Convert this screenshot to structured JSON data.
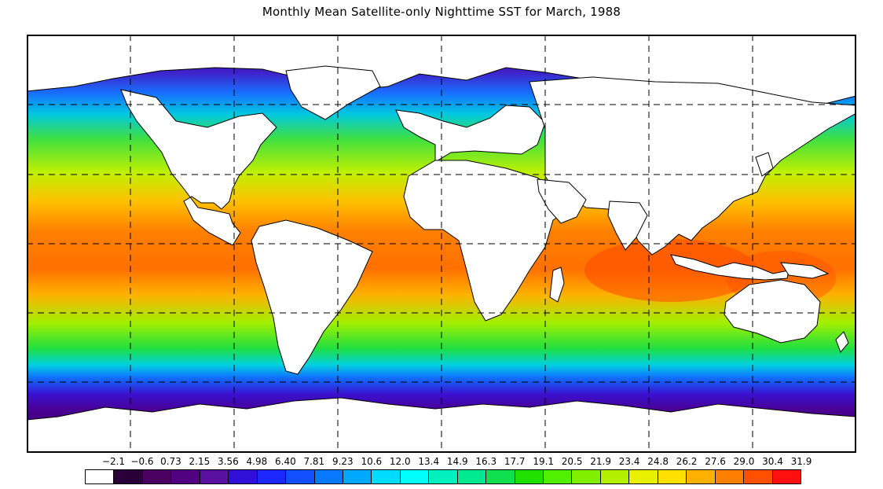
{
  "title": "Monthly Mean Satellite-only Nighttime SST for March, 1988",
  "map": {
    "projection": "equirectangular",
    "grid": "dashed",
    "land_color": "#ffffff",
    "coastline_color": "#000000"
  },
  "colorbar": {
    "labels": [
      "−2.1",
      "−0.6",
      "0.73",
      "2.15",
      "3.56",
      "4.98",
      "6.40",
      "7.81",
      "9.23",
      "10.6",
      "12.0",
      "13.4",
      "14.9",
      "16.3",
      "17.7",
      "19.1",
      "20.5",
      "21.9",
      "23.4",
      "24.8",
      "26.2",
      "27.6",
      "29.0",
      "30.4",
      "31.9"
    ],
    "colors": [
      "#ffffff",
      "#2a0038",
      "#4a0060",
      "#520082",
      "#5a10a0",
      "#3010d8",
      "#1c28ff",
      "#1050ff",
      "#0878ff",
      "#00a8ff",
      "#00dcff",
      "#00ffff",
      "#00f0c0",
      "#00e890",
      "#10e050",
      "#20e000",
      "#50f000",
      "#80f000",
      "#b0f000",
      "#e8f000",
      "#ffe000",
      "#ffb000",
      "#ff8000",
      "#ff5000",
      "#ff1010"
    ]
  }
}
